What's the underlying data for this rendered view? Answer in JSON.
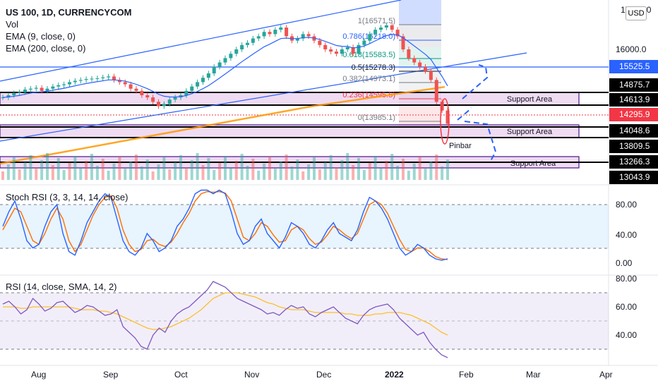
{
  "legend": {
    "symbol": "US 100, 1D, CURRENCYCOM",
    "vol": "Vol",
    "ema9": "EMA (9, close, 0)",
    "ema200": "EMA (200, close, 0)",
    "stoch": "Stoch RSI (3, 3, 14, 14, close)",
    "rsi": "RSI (14, close, SMA, 14, 2)"
  },
  "currency_button": "USD",
  "price_axis_top_label": "17000.0",
  "price_tags": [
    {
      "label": "15525.5",
      "color": "#2962ff",
      "value": 15525.5
    },
    {
      "label": "14875.7",
      "color": "#000000",
      "value": 14875.7
    },
    {
      "label": "14613.9",
      "color": "#000000",
      "value": 14613.9
    },
    {
      "label": "14295.9",
      "color": "#f23645",
      "value": 14295.9
    },
    {
      "label": "14048.6",
      "color": "#000000",
      "value": 14048.6
    },
    {
      "label": "13809.5",
      "color": "#000000",
      "value": 13809.5
    },
    {
      "label": "13266.3",
      "color": "#000000",
      "value": 13266.3
    },
    {
      "label": "13043.9",
      "color": "#000000",
      "value": 13043.9
    }
  ],
  "price_axis_labels": [
    "16000.0"
  ],
  "stoch_axis_labels": [
    "80.00",
    "40.00",
    "0.00"
  ],
  "rsi_axis_labels": [
    "80.00",
    "60.00",
    "40.00"
  ],
  "x_axis_labels": [
    "Aug",
    "Sep",
    "Oct",
    "Nov",
    "Dec",
    "2022",
    "Feb",
    "Mar",
    "Apr"
  ],
  "fib_levels": [
    {
      "label": "1(16571.5)",
      "value": 16571.5,
      "color": "#787b86"
    },
    {
      "label": "0.786(16218.0)",
      "value": 16218.0,
      "color": "#2962ff"
    },
    {
      "label": "0.618(15583.5)",
      "value": 15583.5,
      "color": "#089981"
    },
    {
      "label": "0.5(15278.3)",
      "value": 15278.3,
      "color": "#131722"
    },
    {
      "label": "0.382(14973.1)",
      "value": 14973.1,
      "color": "#787b86"
    },
    {
      "label": "0.236(14595.5)",
      "value": 14595.5,
      "color": "#f23645"
    },
    {
      "label": "0(13985.1)",
      "value": 13985.1,
      "color": "#787b86"
    }
  ],
  "annotations": {
    "support_area_1": "Support Area",
    "support_area_2": "Support Area",
    "support_area_3": "Support Area",
    "pinbar": "Pinbar"
  },
  "chart_data": {
    "type": "candlestick",
    "price_range": [
      13000,
      17000
    ],
    "candles_summary": "Daily candles July 2021 – Jan 2022; peak near 16571.5 late Dec, sharp decline to ~14295.9 in Jan",
    "close_series": [
      14900,
      14950,
      15000,
      15020,
      15080,
      15100,
      15120,
      15050,
      15100,
      15150,
      15180,
      15200,
      15250,
      15280,
      15300,
      15320,
      15330,
      15340,
      15360,
      15380,
      15300,
      15250,
      15200,
      15100,
      15050,
      14950,
      14900,
      14800,
      14700,
      14750,
      14850,
      14900,
      14950,
      15050,
      15150,
      15250,
      15350,
      15450,
      15600,
      15700,
      15800,
      15900,
      16000,
      16100,
      16150,
      16250,
      16300,
      16400,
      16350,
      16450,
      16500,
      16300,
      16200,
      16250,
      16350,
      16300,
      16200,
      16100,
      16000,
      15950,
      15900,
      16000,
      16050,
      15900,
      16100,
      16200,
      16350,
      16450,
      16500,
      16550,
      16450,
      16300,
      16000,
      15800,
      15700,
      15600,
      15500,
      15300,
      14800,
      14600,
      14295.9
    ],
    "stoch_rsi": {
      "k": [
        50,
        70,
        85,
        60,
        30,
        20,
        25,
        50,
        70,
        80,
        40,
        15,
        10,
        30,
        55,
        70,
        85,
        95,
        90,
        60,
        30,
        15,
        10,
        20,
        40,
        30,
        15,
        20,
        30,
        50,
        60,
        75,
        95,
        100,
        100,
        95,
        100,
        95,
        70,
        40,
        25,
        30,
        50,
        60,
        40,
        30,
        20,
        35,
        55,
        50,
        40,
        25,
        20,
        30,
        45,
        55,
        40,
        35,
        30,
        45,
        70,
        90,
        85,
        75,
        60,
        40,
        20,
        10,
        15,
        25,
        20,
        10,
        5,
        3,
        5
      ],
      "d": [
        45,
        60,
        75,
        70,
        50,
        30,
        25,
        40,
        60,
        75,
        60,
        30,
        15,
        25,
        45,
        65,
        80,
        90,
        92,
        75,
        45,
        25,
        15,
        18,
        30,
        32,
        25,
        22,
        28,
        40,
        55,
        68,
        85,
        95,
        98,
        97,
        98,
        96,
        85,
        60,
        35,
        30,
        40,
        55,
        50,
        38,
        28,
        30,
        45,
        50,
        45,
        33,
        25,
        28,
        38,
        50,
        45,
        38,
        33,
        40,
        60,
        80,
        85,
        80,
        68,
        50,
        32,
        18,
        15,
        20,
        20,
        15,
        8,
        5,
        4
      ]
    },
    "rsi": {
      "rsi": [
        62,
        64,
        60,
        55,
        58,
        66,
        62,
        57,
        59,
        63,
        64,
        60,
        56,
        58,
        61,
        60,
        57,
        54,
        55,
        58,
        46,
        42,
        38,
        32,
        30,
        40,
        45,
        42,
        50,
        55,
        58,
        60,
        64,
        68,
        72,
        78,
        76,
        74,
        70,
        66,
        64,
        62,
        60,
        58,
        55,
        56,
        54,
        58,
        61,
        59,
        60,
        55,
        53,
        56,
        58,
        60,
        56,
        52,
        50,
        48,
        54,
        58,
        60,
        61,
        62,
        58,
        52,
        48,
        44,
        40,
        42,
        35,
        30,
        26,
        24
      ],
      "sma": [
        60,
        60,
        60,
        59,
        59,
        60,
        60,
        60,
        60,
        60,
        60,
        60,
        59,
        58,
        58,
        58,
        57,
        57,
        56,
        55,
        53,
        51,
        49,
        47,
        45,
        44,
        44,
        45,
        46,
        48,
        50,
        52,
        55,
        58,
        62,
        66,
        68,
        70,
        70,
        70,
        69,
        68,
        67,
        65,
        63,
        62,
        60,
        59,
        58,
        58,
        58,
        57,
        56,
        56,
        56,
        56,
        56,
        55,
        55,
        54,
        54,
        54,
        55,
        55,
        56,
        56,
        56,
        55,
        54,
        52,
        50,
        48,
        45,
        42,
        40
      ]
    },
    "volume": "per-day volume histogram"
  }
}
